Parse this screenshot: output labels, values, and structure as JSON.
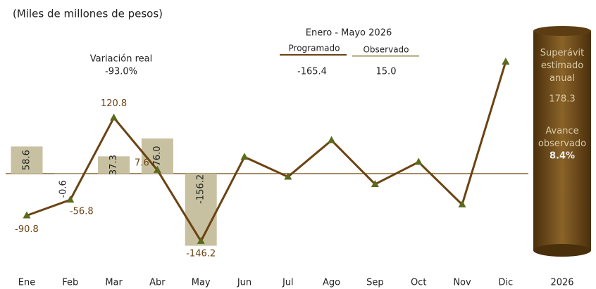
{
  "chart_data": {
    "type": "bar-line",
    "subtitle": "(Miles de millones de pesos)",
    "categories": [
      "Ene",
      "Feb",
      "Mar",
      "Abr",
      "May",
      "Jun",
      "Jul",
      "Ago",
      "Sep",
      "Oct",
      "Nov",
      "Dic"
    ],
    "ylim": [
      -160,
      260
    ],
    "series": [
      {
        "name": "Observado",
        "type": "bar",
        "color": "#c8c1a1",
        "values": [
          58.6,
          -0.6,
          37.3,
          76.0,
          -156.2,
          null,
          null,
          null,
          null,
          null,
          null,
          null
        ],
        "value_labels": [
          "58.6",
          "-0.6",
          "37.3",
          "76.0",
          "-156.2",
          null,
          null,
          null,
          null,
          null,
          null,
          null
        ]
      },
      {
        "name": "Programado",
        "type": "line",
        "color": "#6b4312",
        "marker_color": "#5b6a1c",
        "values": [
          -90.8,
          -56.8,
          120.8,
          7.6,
          -146.2,
          36,
          -7,
          72,
          -23,
          25,
          -67,
          242
        ],
        "value_labels": [
          "-90.8",
          "-56.8",
          "120.8",
          "7.6",
          "-146.2",
          null,
          null,
          null,
          null,
          null,
          null,
          null
        ]
      }
    ],
    "period": "Enero - Mayo 2026",
    "programado_total": "-165.4",
    "observado_total": "15.0",
    "variacion_label": "Variación real",
    "variacion_value": "-93.0%",
    "side_panel": {
      "year": "2026",
      "superavit_label": "Superávit estimado anual",
      "superavit_value": "178.3",
      "avance_label": "Avance observado",
      "avance_value": "8.4%"
    }
  }
}
